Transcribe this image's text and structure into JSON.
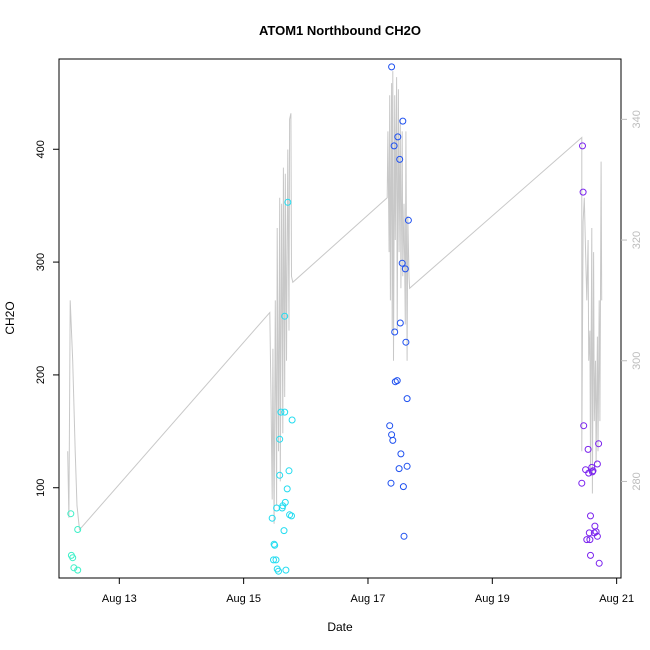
{
  "chart_data": {
    "type": "scatter",
    "title": "ATOM1 Northbound CH2O",
    "xlabel": "Date",
    "ylabel": "CH2O",
    "x_ticks": [
      "Aug 13",
      "Aug 15",
      "Aug 17",
      "Aug 19",
      "Aug 21"
    ],
    "y_ticks": [
      "100",
      "200",
      "300",
      "400"
    ],
    "y2_ticks": [
      "280",
      "300",
      "320",
      "340"
    ],
    "xlim_days": [
      12.03,
      21.07
    ],
    "ylim": [
      20,
      480
    ],
    "y2lim": [
      264,
      350
    ],
    "grid": false,
    "legend": "none",
    "colors": {
      "line": "#c8c8c8",
      "right_axis": "#bdbdbd",
      "frame": "#000000"
    },
    "points": [
      {
        "x": 12.22,
        "y": 77,
        "color": "#3ef0c8"
      },
      {
        "x": 12.23,
        "y": 40,
        "color": "#3ef0c8"
      },
      {
        "x": 12.25,
        "y": 38,
        "color": "#3ef0c8"
      },
      {
        "x": 12.27,
        "y": 29,
        "color": "#3ef0c8"
      },
      {
        "x": 12.33,
        "y": 27,
        "color": "#3ef0c8"
      },
      {
        "x": 12.33,
        "y": 63,
        "color": "#3ef0c8"
      },
      {
        "x": 15.46,
        "y": 73,
        "color": "#22dcf0"
      },
      {
        "x": 15.48,
        "y": 36,
        "color": "#22dcf0"
      },
      {
        "x": 15.49,
        "y": 50,
        "color": "#22dcf0"
      },
      {
        "x": 15.5,
        "y": 49,
        "color": "#22dcf0"
      },
      {
        "x": 15.52,
        "y": 36,
        "color": "#22dcf0"
      },
      {
        "x": 15.53,
        "y": 82,
        "color": "#22dcf0"
      },
      {
        "x": 15.54,
        "y": 28,
        "color": "#22dcf0"
      },
      {
        "x": 15.56,
        "y": 26,
        "color": "#22dcf0"
      },
      {
        "x": 15.58,
        "y": 111,
        "color": "#22dcf0"
      },
      {
        "x": 15.58,
        "y": 143,
        "color": "#22dcf0"
      },
      {
        "x": 15.6,
        "y": 167,
        "color": "#22dcf0"
      },
      {
        "x": 15.62,
        "y": 82,
        "color": "#22dcf0"
      },
      {
        "x": 15.63,
        "y": 84,
        "color": "#22dcf0"
      },
      {
        "x": 15.65,
        "y": 62,
        "color": "#22dcf0"
      },
      {
        "x": 15.66,
        "y": 167,
        "color": "#22dcf0"
      },
      {
        "x": 15.66,
        "y": 252,
        "color": "#22dcf0"
      },
      {
        "x": 15.67,
        "y": 87,
        "color": "#22dcf0"
      },
      {
        "x": 15.68,
        "y": 27,
        "color": "#22dcf0"
      },
      {
        "x": 15.7,
        "y": 99,
        "color": "#22dcf0"
      },
      {
        "x": 15.71,
        "y": 353,
        "color": "#22dcf0"
      },
      {
        "x": 15.73,
        "y": 115,
        "color": "#22dcf0"
      },
      {
        "x": 15.74,
        "y": 76,
        "color": "#22dcf0"
      },
      {
        "x": 15.77,
        "y": 75,
        "color": "#22dcf0"
      },
      {
        "x": 15.78,
        "y": 160,
        "color": "#22dcf0"
      },
      {
        "x": 17.35,
        "y": 155,
        "color": "#1e50f0"
      },
      {
        "x": 17.37,
        "y": 104,
        "color": "#1e50f0"
      },
      {
        "x": 17.38,
        "y": 147,
        "color": "#1e50f0"
      },
      {
        "x": 17.38,
        "y": 473,
        "color": "#1e50f0"
      },
      {
        "x": 17.4,
        "y": 142,
        "color": "#1e50f0"
      },
      {
        "x": 17.42,
        "y": 403,
        "color": "#1e50f0"
      },
      {
        "x": 17.43,
        "y": 238,
        "color": "#1e50f0"
      },
      {
        "x": 17.44,
        "y": 194,
        "color": "#1e50f0"
      },
      {
        "x": 17.47,
        "y": 195,
        "color": "#1e50f0"
      },
      {
        "x": 17.48,
        "y": 411,
        "color": "#1e50f0"
      },
      {
        "x": 17.5,
        "y": 117,
        "color": "#1e50f0"
      },
      {
        "x": 17.51,
        "y": 391,
        "color": "#1e50f0"
      },
      {
        "x": 17.52,
        "y": 246,
        "color": "#1e50f0"
      },
      {
        "x": 17.53,
        "y": 130,
        "color": "#1e50f0"
      },
      {
        "x": 17.55,
        "y": 299,
        "color": "#1e50f0"
      },
      {
        "x": 17.56,
        "y": 425,
        "color": "#1e50f0"
      },
      {
        "x": 17.57,
        "y": 101,
        "color": "#1e50f0"
      },
      {
        "x": 17.58,
        "y": 57,
        "color": "#1e50f0"
      },
      {
        "x": 17.6,
        "y": 294,
        "color": "#1e50f0"
      },
      {
        "x": 17.61,
        "y": 229,
        "color": "#1e50f0"
      },
      {
        "x": 17.63,
        "y": 119,
        "color": "#1e50f0"
      },
      {
        "x": 17.63,
        "y": 179,
        "color": "#1e50f0"
      },
      {
        "x": 17.65,
        "y": 337,
        "color": "#1e50f0"
      },
      {
        "x": 20.44,
        "y": 104,
        "color": "#7a22ee"
      },
      {
        "x": 20.45,
        "y": 403,
        "color": "#7a22ee"
      },
      {
        "x": 20.46,
        "y": 362,
        "color": "#7a22ee"
      },
      {
        "x": 20.47,
        "y": 155,
        "color": "#7a22ee"
      },
      {
        "x": 20.5,
        "y": 116,
        "color": "#7a22ee"
      },
      {
        "x": 20.52,
        "y": 54,
        "color": "#7a22ee"
      },
      {
        "x": 20.54,
        "y": 134,
        "color": "#7a22ee"
      },
      {
        "x": 20.55,
        "y": 113,
        "color": "#7a22ee"
      },
      {
        "x": 20.56,
        "y": 60,
        "color": "#7a22ee"
      },
      {
        "x": 20.57,
        "y": 54,
        "color": "#7a22ee"
      },
      {
        "x": 20.58,
        "y": 75,
        "color": "#7a22ee"
      },
      {
        "x": 20.58,
        "y": 40,
        "color": "#7a22ee"
      },
      {
        "x": 20.6,
        "y": 118,
        "color": "#7a22ee"
      },
      {
        "x": 20.61,
        "y": 114,
        "color": "#7a22ee"
      },
      {
        "x": 20.62,
        "y": 115,
        "color": "#7a22ee"
      },
      {
        "x": 20.64,
        "y": 60,
        "color": "#7a22ee"
      },
      {
        "x": 20.65,
        "y": 66,
        "color": "#7a22ee"
      },
      {
        "x": 20.67,
        "y": 61,
        "color": "#7a22ee"
      },
      {
        "x": 20.69,
        "y": 57,
        "color": "#7a22ee"
      },
      {
        "x": 20.69,
        "y": 121,
        "color": "#7a22ee"
      },
      {
        "x": 20.71,
        "y": 139,
        "color": "#7a22ee"
      },
      {
        "x": 20.72,
        "y": 33,
        "color": "#7a22ee"
      }
    ],
    "secondary_series": {
      "y2": [
        [
          12.17,
          285
        ],
        [
          12.19,
          274
        ],
        [
          12.21,
          310
        ],
        [
          12.25,
          300
        ],
        [
          12.29,
          285
        ],
        [
          12.32,
          276
        ],
        [
          12.36,
          272
        ],
        [
          15.42,
          308
        ],
        [
          15.44,
          294
        ],
        [
          15.46,
          277
        ],
        [
          15.47,
          302
        ],
        [
          15.49,
          273
        ],
        [
          15.51,
          310
        ],
        [
          15.53,
          276
        ],
        [
          15.54,
          322
        ],
        [
          15.56,
          285
        ],
        [
          15.58,
          327
        ],
        [
          15.59,
          280
        ],
        [
          15.61,
          326
        ],
        [
          15.63,
          288
        ],
        [
          15.64,
          332
        ],
        [
          15.66,
          294
        ],
        [
          15.67,
          331
        ],
        [
          15.69,
          300
        ],
        [
          15.71,
          335
        ],
        [
          15.73,
          305
        ],
        [
          15.74,
          340
        ],
        [
          15.76,
          341
        ],
        [
          15.77,
          314
        ],
        [
          15.79,
          313
        ],
        [
          17.31,
          327
        ],
        [
          17.32,
          338
        ],
        [
          17.34,
          318
        ],
        [
          17.35,
          344
        ],
        [
          17.36,
          310
        ],
        [
          17.38,
          346
        ],
        [
          17.39,
          305
        ],
        [
          17.4,
          348
        ],
        [
          17.41,
          300
        ],
        [
          17.43,
          344
        ],
        [
          17.44,
          320
        ],
        [
          17.46,
          347
        ],
        [
          17.47,
          305
        ],
        [
          17.49,
          345
        ],
        [
          17.5,
          318
        ],
        [
          17.52,
          340
        ],
        [
          17.53,
          312
        ],
        [
          17.55,
          338
        ],
        [
          17.56,
          314
        ],
        [
          17.58,
          326
        ],
        [
          17.6,
          306
        ],
        [
          17.61,
          338
        ],
        [
          17.63,
          300
        ],
        [
          17.64,
          324
        ],
        [
          17.66,
          314
        ],
        [
          17.67,
          312
        ],
        [
          20.44,
          337
        ],
        [
          20.44,
          285
        ],
        [
          20.46,
          323
        ],
        [
          20.48,
          327
        ],
        [
          20.5,
          318
        ],
        [
          20.52,
          310
        ],
        [
          20.54,
          320
        ],
        [
          20.55,
          300
        ],
        [
          20.57,
          305
        ],
        [
          20.58,
          282
        ],
        [
          20.6,
          322
        ],
        [
          20.61,
          278
        ],
        [
          20.63,
          318
        ],
        [
          20.64,
          290
        ],
        [
          20.66,
          300
        ],
        [
          20.67,
          283
        ],
        [
          20.69,
          304
        ],
        [
          20.7,
          285
        ],
        [
          20.72,
          310
        ],
        [
          20.73,
          290
        ],
        [
          20.75,
          333
        ],
        [
          20.76,
          310
        ]
      ]
    }
  }
}
